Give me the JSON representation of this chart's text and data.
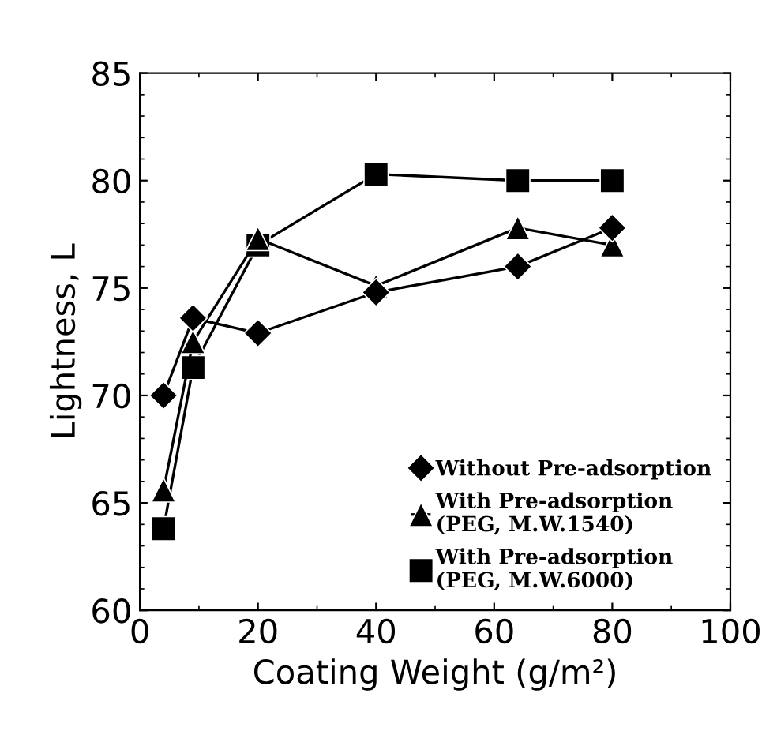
{
  "chart_data": {
    "type": "line",
    "xlabel": "Coating Weight (g/m²)",
    "ylabel": "Lightness, L",
    "xlim": [
      0,
      100
    ],
    "xticks": [
      0,
      20,
      40,
      60,
      80,
      100
    ],
    "ylim": [
      60,
      85
    ],
    "yticks": [
      60,
      65,
      70,
      75,
      80,
      85
    ],
    "grid": false,
    "legend": "bottom right",
    "series": [
      {
        "name": "Without Pre-adsorption",
        "color": "#000000",
        "marker": "diamond",
        "x": [
          4,
          9,
          20,
          40,
          64,
          80
        ],
        "values": [
          70,
          73.6,
          72.9,
          74.8,
          76,
          77.8
        ]
      },
      {
        "name": "With Pre-adsorption\n(PEG, M.W.1540)",
        "color": "#000000",
        "marker": "triangle",
        "x": [
          4,
          9,
          20,
          40,
          64,
          80
        ],
        "values": [
          65.6,
          72.5,
          77.3,
          75.1,
          77.8,
          77
        ]
      },
      {
        "name": "With Pre-adsorption\n(PEG, M.W.6000)",
        "color": "#000000",
        "marker": "square",
        "x": [
          4,
          9,
          20,
          40,
          64,
          80
        ],
        "values": [
          63.8,
          71.3,
          77,
          80.3,
          80,
          80
        ]
      }
    ]
  }
}
